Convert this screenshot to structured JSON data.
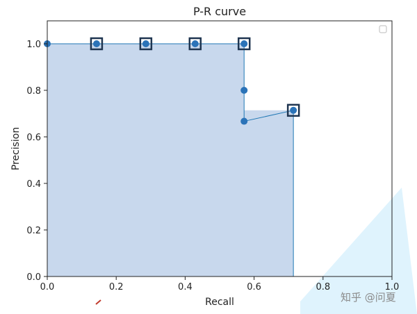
{
  "chart_data": {
    "type": "line",
    "title": "P-R curve",
    "xlabel": "Recall",
    "ylabel": "Precision",
    "xlim": [
      0.0,
      1.0
    ],
    "ylim": [
      0.0,
      1.1
    ],
    "xticks": [
      "0.0",
      "0.2",
      "0.4",
      "0.6",
      "0.8",
      "1.0"
    ],
    "yticks": [
      "0.0",
      "0.2",
      "0.4",
      "0.6",
      "0.8",
      "1.0"
    ],
    "grid": false,
    "legend": "top-right (empty box)",
    "series": [
      {
        "x": [
          0.0,
          0.143,
          0.286,
          0.429,
          0.571,
          0.571,
          0.571,
          0.714
        ],
        "y": [
          1.0,
          1.0,
          1.0,
          1.0,
          1.0,
          0.8,
          0.667,
          0.714
        ]
      }
    ],
    "highlighted_points": {
      "x": [
        0.143,
        0.286,
        0.429,
        0.571,
        0.714
      ],
      "y": [
        1.0,
        1.0,
        1.0,
        1.0,
        0.714
      ]
    },
    "shaded_area": {
      "x": [
        0.0,
        0.571,
        0.571,
        0.714,
        0.714
      ],
      "y": [
        1.0,
        1.0,
        0.714,
        0.714,
        0.0
      ]
    },
    "colors": {
      "line": "#1f77b4",
      "fill": "#c5d6ec",
      "marker": "#2b73b8",
      "highlight_box": "#1f3550",
      "axes": "#222222"
    }
  },
  "watermark": {
    "text": "知乎 @问夏"
  }
}
